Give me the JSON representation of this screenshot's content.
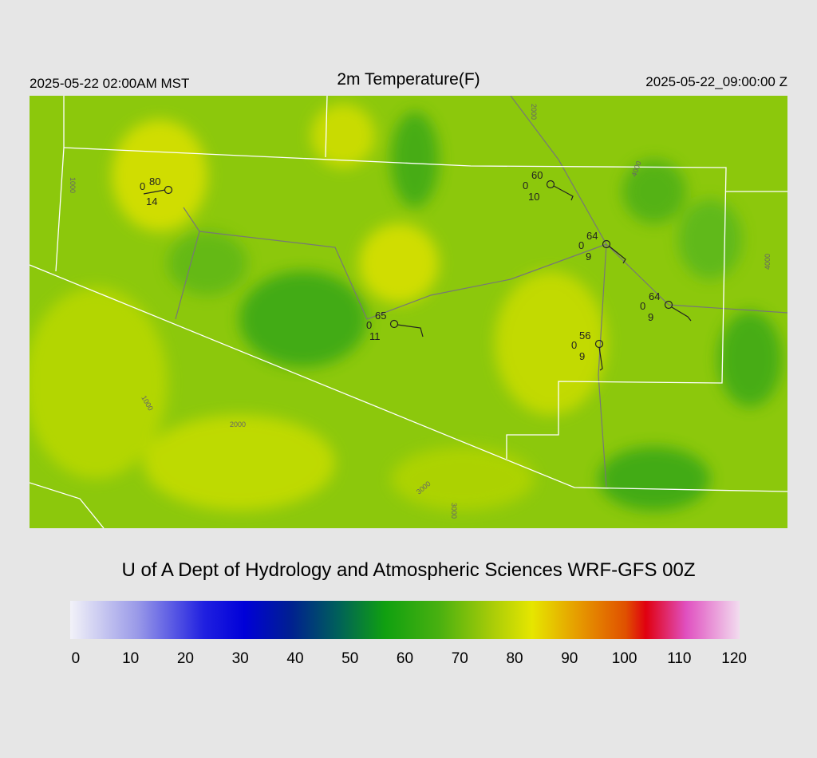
{
  "header": {
    "left": "2025-05-22 02:00AM MST",
    "title": "2m Temperature(F)",
    "right": "2025-05-22_09:00:00 Z"
  },
  "stations": [
    {
      "temp": 80,
      "marker": 0,
      "dewpoint": 14
    },
    {
      "temp": 60,
      "marker": 0,
      "dewpoint": 10
    },
    {
      "temp": 64,
      "marker": 0,
      "dewpoint": 9
    },
    {
      "temp": 64,
      "marker": 0,
      "dewpoint": 9
    },
    {
      "temp": 65,
      "marker": 0,
      "dewpoint": 11
    },
    {
      "temp": 56,
      "marker": 0,
      "dewpoint": 9
    }
  ],
  "contour_labels": [
    "1000",
    "2000",
    "3000",
    "4000",
    "1000",
    "2000",
    "3000",
    "4000"
  ],
  "footer": "U of A Dept of Hydrology and Atmospheric Sciences WRF-GFS 00Z",
  "colorbar": {
    "range": [
      -1,
      121
    ],
    "ticks": [
      0,
      10,
      20,
      30,
      40,
      50,
      60,
      70,
      80,
      90,
      100,
      110,
      120
    ]
  }
}
